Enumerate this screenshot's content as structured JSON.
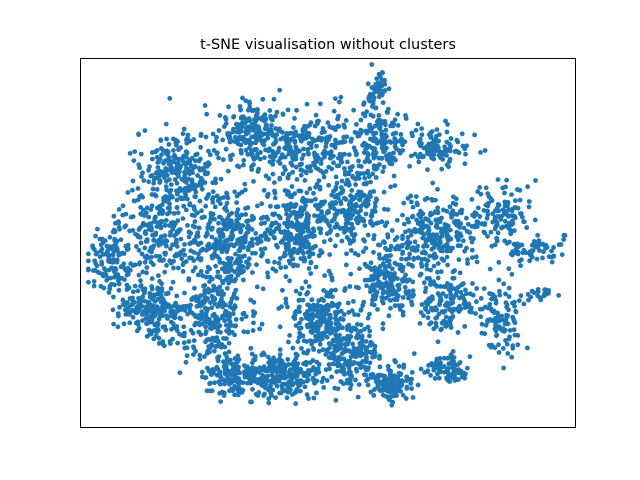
{
  "chart_data": {
    "type": "scatter",
    "title": "t-SNE visualisation without clusters",
    "xlabel": "",
    "ylabel": "",
    "xticks": [],
    "yticks": [],
    "grid": false,
    "legend": null,
    "series": [
      {
        "color": "#1f77b4",
        "approx_points": 5000,
        "clusters": [
          {
            "cx": 0.06,
            "cy": 0.55,
            "sx": 0.025,
            "sy": 0.05,
            "n": 120
          },
          {
            "cx": 0.14,
            "cy": 0.68,
            "sx": 0.03,
            "sy": 0.04,
            "n": 200
          },
          {
            "cx": 0.16,
            "cy": 0.47,
            "sx": 0.04,
            "sy": 0.06,
            "n": 220
          },
          {
            "cx": 0.2,
            "cy": 0.3,
            "sx": 0.04,
            "sy": 0.05,
            "n": 240
          },
          {
            "cx": 0.26,
            "cy": 0.7,
            "sx": 0.04,
            "sy": 0.06,
            "n": 260
          },
          {
            "cx": 0.3,
            "cy": 0.5,
            "sx": 0.04,
            "sy": 0.06,
            "n": 300
          },
          {
            "cx": 0.34,
            "cy": 0.2,
            "sx": 0.03,
            "sy": 0.04,
            "n": 180
          },
          {
            "cx": 0.32,
            "cy": 0.86,
            "sx": 0.04,
            "sy": 0.03,
            "n": 200
          },
          {
            "cx": 0.45,
            "cy": 0.24,
            "sx": 0.05,
            "sy": 0.05,
            "n": 260
          },
          {
            "cx": 0.44,
            "cy": 0.46,
            "sx": 0.04,
            "sy": 0.06,
            "n": 300
          },
          {
            "cx": 0.49,
            "cy": 0.71,
            "sx": 0.04,
            "sy": 0.05,
            "n": 260
          },
          {
            "cx": 0.42,
            "cy": 0.86,
            "sx": 0.05,
            "sy": 0.03,
            "n": 200
          },
          {
            "cx": 0.55,
            "cy": 0.4,
            "sx": 0.03,
            "sy": 0.05,
            "n": 200
          },
          {
            "cx": 0.55,
            "cy": 0.8,
            "sx": 0.03,
            "sy": 0.04,
            "n": 160
          },
          {
            "cx": 0.6,
            "cy": 0.22,
            "sx": 0.03,
            "sy": 0.05,
            "n": 180
          },
          {
            "cx": 0.62,
            "cy": 0.6,
            "sx": 0.03,
            "sy": 0.05,
            "n": 200
          },
          {
            "cx": 0.63,
            "cy": 0.88,
            "sx": 0.02,
            "sy": 0.025,
            "n": 120
          },
          {
            "cx": 0.6,
            "cy": 0.08,
            "sx": 0.008,
            "sy": 0.025,
            "n": 40
          },
          {
            "cx": 0.72,
            "cy": 0.47,
            "sx": 0.04,
            "sy": 0.05,
            "n": 240
          },
          {
            "cx": 0.72,
            "cy": 0.24,
            "sx": 0.03,
            "sy": 0.025,
            "n": 100
          },
          {
            "cx": 0.74,
            "cy": 0.66,
            "sx": 0.03,
            "sy": 0.04,
            "n": 140
          },
          {
            "cx": 0.74,
            "cy": 0.84,
            "sx": 0.025,
            "sy": 0.02,
            "n": 80
          },
          {
            "cx": 0.85,
            "cy": 0.43,
            "sx": 0.03,
            "sy": 0.04,
            "n": 120
          },
          {
            "cx": 0.85,
            "cy": 0.71,
            "sx": 0.025,
            "sy": 0.05,
            "n": 110
          },
          {
            "cx": 0.92,
            "cy": 0.52,
            "sx": 0.03,
            "sy": 0.015,
            "n": 60
          },
          {
            "cx": 0.93,
            "cy": 0.64,
            "sx": 0.015,
            "sy": 0.01,
            "n": 20
          }
        ]
      }
    ]
  }
}
